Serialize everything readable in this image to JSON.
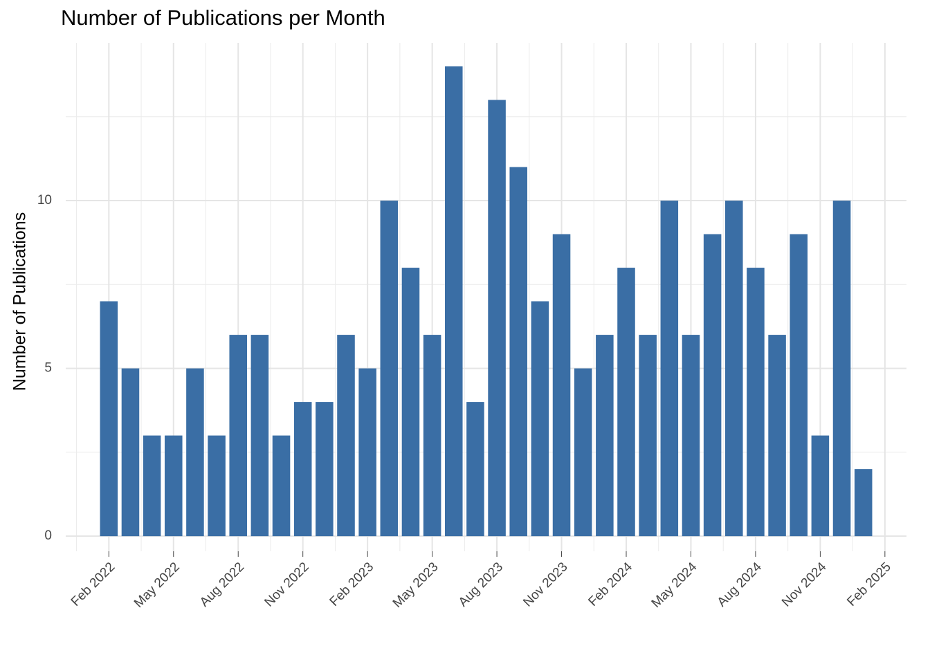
{
  "chart_data": {
    "type": "bar",
    "title": "Number of Publications per Month",
    "y_label": "Number of Publications",
    "x": [
      "2022-02",
      "2022-03",
      "2022-04",
      "2022-05",
      "2022-06",
      "2022-07",
      "2022-08",
      "2022-09",
      "2022-10",
      "2022-11",
      "2022-12",
      "2023-01",
      "2023-02",
      "2023-03",
      "2023-04",
      "2023-05",
      "2023-06",
      "2023-07",
      "2023-08",
      "2023-09",
      "2023-10",
      "2023-11",
      "2023-12",
      "2024-01",
      "2024-02",
      "2024-03",
      "2024-04",
      "2024-05",
      "2024-06",
      "2024-07",
      "2024-08",
      "2024-09",
      "2024-10",
      "2024-11",
      "2024-12",
      "2025-01"
    ],
    "values": [
      7,
      5,
      3,
      3,
      5,
      3,
      6,
      6,
      3,
      4,
      4,
      6,
      5,
      10,
      8,
      6,
      14,
      4,
      13,
      11,
      7,
      9,
      5,
      6,
      8,
      6,
      10,
      6,
      9,
      10,
      8,
      6,
      9,
      3,
      10,
      2
    ],
    "color": "#3a6ea5",
    "xlim": [
      "2021-12",
      "2025-03"
    ],
    "xticks": [
      {
        "value": "2022-02",
        "label": "Feb 2022"
      },
      {
        "value": "2022-05",
        "label": "May 2022"
      },
      {
        "value": "2022-08",
        "label": "Aug 2022"
      },
      {
        "value": "2022-11",
        "label": "Nov 2022"
      },
      {
        "value": "2023-02",
        "label": "Feb 2023"
      },
      {
        "value": "2023-05",
        "label": "May 2023"
      },
      {
        "value": "2023-08",
        "label": "Aug 2023"
      },
      {
        "value": "2023-11",
        "label": "Nov 2023"
      },
      {
        "value": "2024-02",
        "label": "Feb 2024"
      },
      {
        "value": "2024-05",
        "label": "May 2024"
      },
      {
        "value": "2024-08",
        "label": "Aug 2024"
      },
      {
        "value": "2024-11",
        "label": "Nov 2024"
      },
      {
        "value": "2025-02",
        "label": "Feb 2025"
      }
    ],
    "ylim": [
      -0.45,
      14.7
    ],
    "yticks": [
      0,
      5,
      10
    ],
    "grid": true
  }
}
